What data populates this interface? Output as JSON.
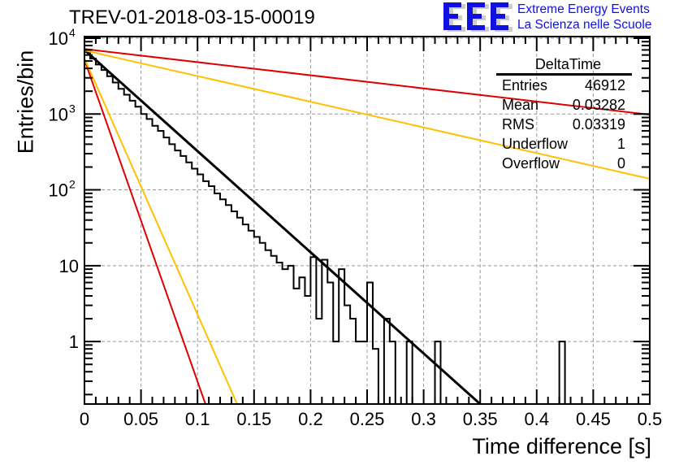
{
  "header": {
    "title": "TREV-01-2018-03-15-00019",
    "logo_letters": "EEE",
    "logo_line1": "Extreme Energy Events",
    "logo_line2": "La Scienza nelle Scuole"
  },
  "stats_box": {
    "name": "DeltaTime",
    "rows": [
      {
        "label": "Entries",
        "value": "46912"
      },
      {
        "label": "Mean",
        "value": "0.03282"
      },
      {
        "label": "RMS",
        "value": "0.03319"
      },
      {
        "label": "Underflow",
        "value": "1"
      },
      {
        "label": "Overflow",
        "value": "0"
      }
    ]
  },
  "colors": {
    "histogram": "#000000",
    "fit": "#000000",
    "red_line": "#e00000",
    "yellow_line": "#ffc000",
    "grid": "#999999",
    "logo": "#1010e0"
  },
  "chart_data": {
    "type": "line",
    "title": "TREV-01-2018-03-15-00019",
    "xlabel": "Time difference [s]",
    "ylabel": "Entries/bin",
    "xlim": [
      0,
      0.5
    ],
    "ylim": [
      0.15,
      10500
    ],
    "yscale": "log",
    "grid": true,
    "x_ticks": [
      "0",
      "0.05",
      "0.1",
      "0.15",
      "0.2",
      "0.25",
      "0.3",
      "0.35",
      "0.4",
      "0.45",
      "0.5"
    ],
    "y_ticks": [
      {
        "value": 1,
        "label": "1"
      },
      {
        "value": 10,
        "label": "10"
      },
      {
        "value": 100,
        "label": "10^2"
      },
      {
        "value": 1000,
        "label": "10^3"
      },
      {
        "value": 10000,
        "label": "10^4"
      }
    ],
    "histogram": {
      "name": "DeltaTime",
      "bin_width": 0.005,
      "values": [
        6600,
        5400,
        4500,
        3800,
        3150,
        2600,
        2150,
        1800,
        1500,
        1250,
        1000,
        860,
        700,
        600,
        490,
        400,
        330,
        280,
        230,
        190,
        160,
        130,
        112,
        90,
        75,
        63,
        52,
        43,
        35,
        29,
        24,
        20,
        16,
        13.5,
        11,
        9,
        10,
        5,
        7,
        4,
        13,
        2,
        12,
        6,
        1,
        9,
        3,
        2,
        1,
        1,
        6,
        0.8,
        0,
        2,
        1,
        0,
        0,
        1,
        0,
        0,
        0,
        0,
        1,
        0,
        0,
        0,
        0,
        0,
        0,
        0,
        0,
        0,
        0,
        0,
        0,
        0,
        0,
        0,
        0,
        0,
        0,
        0,
        0,
        0,
        1,
        0,
        0,
        0,
        0,
        0,
        0,
        0,
        0,
        0,
        0,
        0,
        0,
        0,
        0,
        0
      ]
    },
    "series": [
      {
        "name": "fit",
        "color": "#000000",
        "points": [
          [
            0,
            7000
          ],
          [
            0.35,
            0.15
          ]
        ]
      },
      {
        "name": "red-steep",
        "color": "#e00000",
        "points": [
          [
            0,
            5200
          ],
          [
            0.107,
            0.15
          ]
        ]
      },
      {
        "name": "yellow-steep",
        "color": "#ffc000",
        "points": [
          [
            0,
            5400
          ],
          [
            0.135,
            0.15
          ]
        ]
      },
      {
        "name": "red-shallow",
        "color": "#e00000",
        "points": [
          [
            0,
            7200
          ],
          [
            0.5,
            980
          ]
        ]
      },
      {
        "name": "yellow-shallow",
        "color": "#ffc000",
        "points": [
          [
            0,
            6900
          ],
          [
            0.5,
            140
          ]
        ]
      }
    ]
  }
}
